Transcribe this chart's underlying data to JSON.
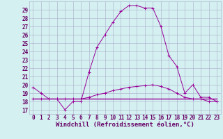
{
  "x": [
    0,
    1,
    2,
    3,
    4,
    5,
    6,
    7,
    8,
    9,
    10,
    11,
    12,
    13,
    14,
    15,
    16,
    17,
    18,
    19,
    20,
    21,
    22,
    23
  ],
  "line1": [
    19.7,
    19.0,
    18.3,
    18.3,
    17.0,
    18.0,
    18.0,
    21.5,
    24.5,
    26.0,
    27.5,
    28.8,
    29.5,
    29.5,
    29.2,
    29.2,
    27.0,
    23.5,
    22.2,
    19.0,
    20.0,
    18.5,
    18.5,
    18.0
  ],
  "line2": [
    18.3,
    18.3,
    18.3,
    18.3,
    18.3,
    18.3,
    18.3,
    18.3,
    18.3,
    18.3,
    18.3,
    18.3,
    18.3,
    18.3,
    18.3,
    18.3,
    18.3,
    18.3,
    18.3,
    18.3,
    18.3,
    18.3,
    18.3,
    18.3
  ],
  "line3": [
    18.3,
    18.3,
    18.3,
    18.3,
    18.3,
    18.3,
    18.3,
    18.5,
    18.8,
    19.0,
    19.3,
    19.5,
    19.7,
    19.8,
    19.9,
    20.0,
    19.8,
    19.5,
    19.0,
    18.5,
    18.3,
    18.3,
    18.0,
    18.0
  ],
  "line_color": "#990099",
  "bg_color": "#d4f0f0",
  "grid_color": "#aaaacc",
  "text_color": "#660066",
  "ylim": [
    16.5,
    30.0
  ],
  "xlim": [
    -0.5,
    23.5
  ],
  "yticks": [
    17,
    18,
    19,
    20,
    21,
    22,
    23,
    24,
    25,
    26,
    27,
    28,
    29
  ],
  "xticks": [
    0,
    1,
    2,
    3,
    4,
    5,
    6,
    7,
    8,
    9,
    10,
    11,
    12,
    13,
    14,
    15,
    16,
    17,
    18,
    19,
    20,
    21,
    22,
    23
  ],
  "xlabel": "Windchill (Refroidissement éolien,°C)",
  "xlabel_fontsize": 6.5,
  "tick_fontsize": 5.5
}
